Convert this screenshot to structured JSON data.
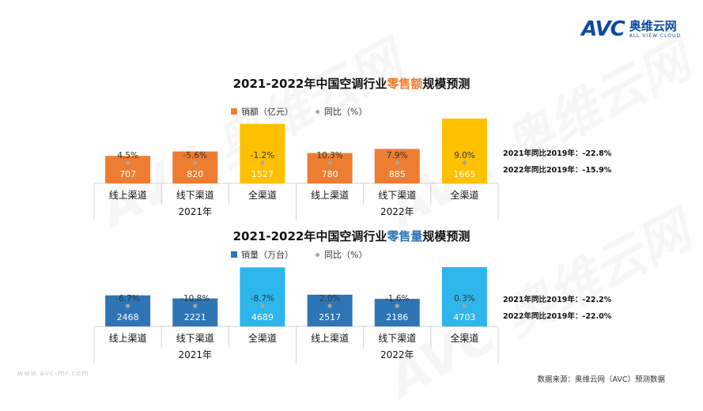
{
  "logo": {
    "mark": "AVC",
    "name_cn": "奥维云网",
    "name_en": "ALL VIEW CLOUD"
  },
  "watermark": {
    "mark": "AVC",
    "name_cn": "奥维云网",
    "name_en": "ALL VIEW CLOUD"
  },
  "colors": {
    "orange": "#ed7d31",
    "gold": "#ffc000",
    "blue": "#2e75b6",
    "lightblue": "#2db6ec",
    "dot": "#a5a5a5"
  },
  "chart_data": [
    {
      "type": "bar",
      "title_prefix": "2021-2022年中国空调行业",
      "title_highlight": "零售额",
      "title_suffix": "规模预测",
      "legend": {
        "bar": "销额（亿元）",
        "dot": "同比（%）"
      },
      "groups": [
        "2021年",
        "2022年"
      ],
      "categories": [
        "线上渠道",
        "线下渠道",
        "全渠道",
        "线上渠道",
        "线下渠道",
        "全渠道"
      ],
      "values": [
        707,
        820,
        1527,
        780,
        885,
        1665
      ],
      "yoy_labels": [
        "4.5%",
        "-5.6%",
        "-1.2%",
        "10.3%",
        "7.9%",
        "9.0%"
      ],
      "yoy": [
        4.5,
        -5.6,
        -1.2,
        10.3,
        7.9,
        9.0
      ],
      "bar_colors": [
        "#ed7d31",
        "#ed7d31",
        "#ffc000",
        "#ed7d31",
        "#ed7d31",
        "#ffc000"
      ],
      "side_notes": [
        "2021年同比2019年：-22.8%",
        "2022年同比2019年：-15.9%"
      ]
    },
    {
      "type": "bar",
      "title_prefix": "2021-2022年中国空调行业",
      "title_highlight": "零售量",
      "title_suffix": "规模预测",
      "legend": {
        "bar": "销量（万台）",
        "dot": "同比（%）"
      },
      "groups": [
        "2021年",
        "2022年"
      ],
      "categories": [
        "线上渠道",
        "线下渠道",
        "全渠道",
        "线上渠道",
        "线下渠道",
        "全渠道"
      ],
      "values": [
        2468,
        2221,
        4689,
        2517,
        2186,
        4703
      ],
      "yoy_labels": [
        "-6.7%",
        "-10.8%",
        "-8.7%",
        "2.0%",
        "-1.6%",
        "0.3%"
      ],
      "yoy": [
        -6.7,
        -10.8,
        -8.7,
        2.0,
        -1.6,
        0.3
      ],
      "bar_colors": [
        "#2e75b6",
        "#2e75b6",
        "#2db6ec",
        "#2e75b6",
        "#2e75b6",
        "#2db6ec"
      ],
      "side_notes": [
        "2021年同比2019年：-22.2%",
        "2022年同比2019年：-22.0%"
      ]
    }
  ],
  "footer": {
    "url": "www.avc-mr.com",
    "source": "数据来源：奥维云网（AVC）预测数据"
  }
}
